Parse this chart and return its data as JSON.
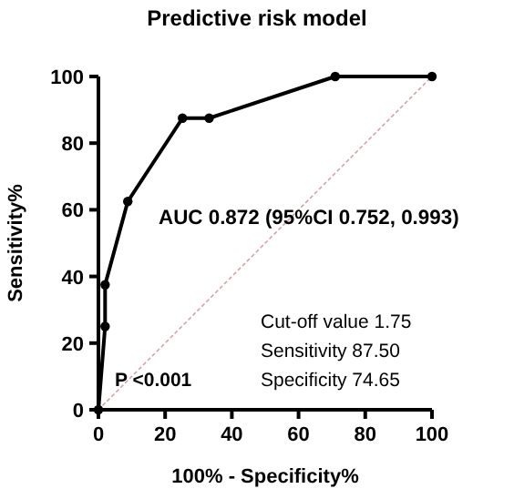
{
  "chart_data": {
    "type": "line",
    "title": "Predictive risk model",
    "xlabel": "100% - Specificity%",
    "ylabel": "Sensitivity%",
    "series": [
      {
        "color": "#000000",
        "marker": "circle",
        "line_style": "solid",
        "x": [
          0,
          2,
          2,
          8.8,
          25.2,
          33.2,
          71,
          100
        ],
        "values": [
          0,
          25,
          37.5,
          62.5,
          87.5,
          87.5,
          100,
          100
        ]
      },
      {
        "color": "#d9a0a8",
        "marker": "none",
        "line_style": "dotted",
        "x": [
          0,
          100
        ],
        "values": [
          0,
          100
        ]
      }
    ],
    "xlim": [
      0,
      100
    ],
    "ylim": [
      0,
      100
    ],
    "xticks": [
      0,
      20,
      40,
      60,
      80,
      100
    ],
    "yticks": [
      0,
      20,
      40,
      60,
      80,
      100
    ],
    "grid": false,
    "annotations": [
      "AUC 0.872 (95%CI 0.752, 0.993)",
      "Cut-off value 1.75",
      "Sensitivity 87.50",
      "Specificity 74.65",
      "P <0.001"
    ]
  }
}
